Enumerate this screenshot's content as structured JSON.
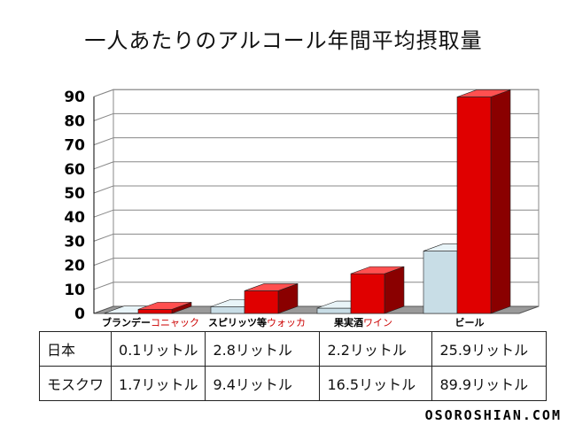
{
  "chart_data": {
    "type": "bar",
    "title": "一人あたりのアルコール年間平均摂取量",
    "ylim": [
      0,
      90
    ],
    "yticks": [
      "0",
      "10",
      "20",
      "30",
      "40",
      "50",
      "60",
      "70",
      "80",
      "90"
    ],
    "categories": [
      {
        "primary": "ブランデー",
        "secondary": "コニャック"
      },
      {
        "primary": "スピリッツ等",
        "secondary": "ウォッカ"
      },
      {
        "primary": "果実酒",
        "secondary": "ワイン"
      },
      {
        "primary": "ビール",
        "secondary": ""
      }
    ],
    "series": [
      {
        "name": "日本",
        "values": [
          0.1,
          2.8,
          2.2,
          25.9
        ]
      },
      {
        "name": "モスクワ",
        "values": [
          1.7,
          9.4,
          16.5,
          89.9
        ]
      }
    ],
    "grid": true,
    "colors": {
      "日本": {
        "front": "#c8dde6",
        "side": "#7e98a4",
        "top": "#e8f4f8"
      },
      "モスクワ": {
        "front": "#e00000",
        "side": "#8a0000",
        "top": "#ff5050"
      },
      "secondary_label": "#cc0000"
    }
  },
  "table": {
    "rows": [
      {
        "label": "日本",
        "cells": [
          "0.1リットル",
          "2.8リットル",
          "2.2リットル",
          "25.9リットル"
        ]
      },
      {
        "label": "モスクワ",
        "cells": [
          "1.7リットル",
          "9.4リットル",
          "16.5リットル",
          "89.9リットル"
        ]
      }
    ]
  },
  "watermark": "OSOROSHIAN.COM"
}
